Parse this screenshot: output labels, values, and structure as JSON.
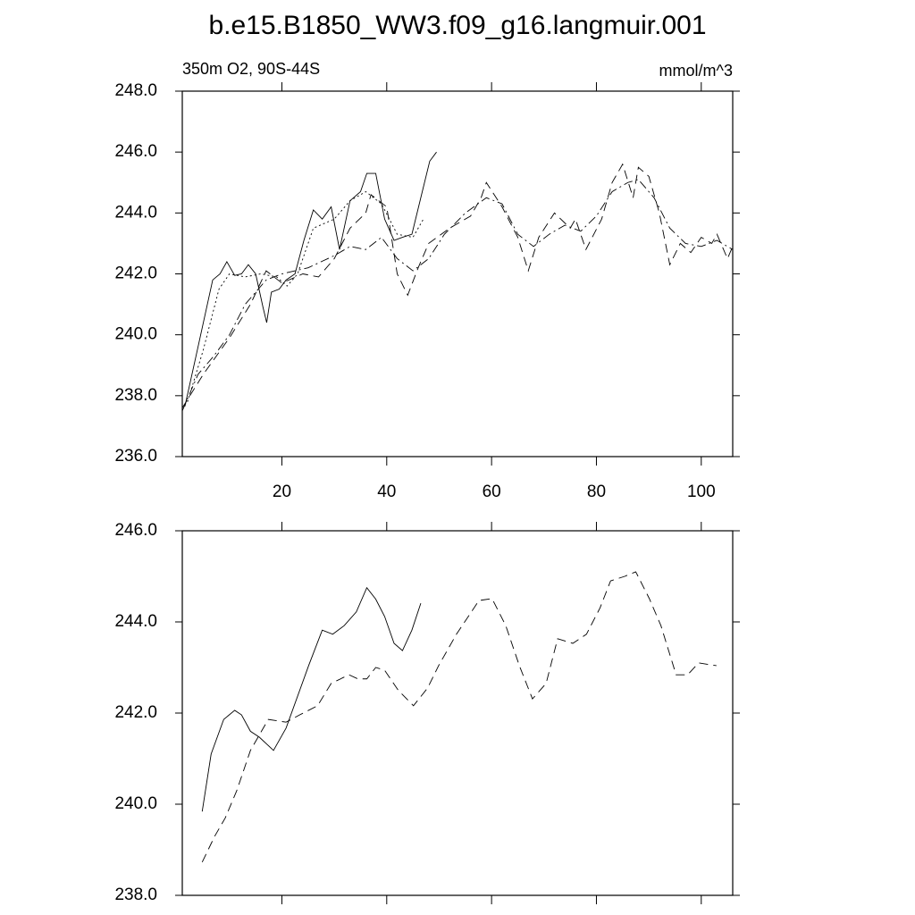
{
  "chart_data": [
    {
      "type": "line",
      "title": "b.e15.B1850_WW3.f09_g16.langmuir.001",
      "subtitle_left": "350m O2, 90S-44S",
      "subtitle_right": "mmol/m^3",
      "xlim": [
        1,
        106
      ],
      "ylim": [
        236,
        248
      ],
      "xticks": [
        20,
        40,
        60,
        80,
        100
      ],
      "yticks": [
        {
          "value": 236,
          "label": "236.0"
        },
        {
          "value": 238,
          "label": "238.0"
        },
        {
          "value": 240,
          "label": "240.0"
        },
        {
          "value": 242,
          "label": "242.0"
        },
        {
          "value": 244,
          "label": "244.0"
        },
        {
          "value": 246,
          "label": "246.0"
        },
        {
          "value": 248,
          "label": "248.0"
        }
      ],
      "xticklabels": true,
      "series": [
        {
          "color": "#000000",
          "style": "solid",
          "x": [
            1.5,
            4,
            6.8,
            8.2,
            9.5,
            11,
            12.3,
            13.6,
            15,
            16.4,
            17.1,
            18,
            19.5,
            20.8,
            22.5,
            24.2,
            26,
            27.7,
            29.4,
            31,
            33,
            35,
            36.2,
            37.9,
            39.6,
            41.4,
            43,
            44.8,
            46.5,
            48.2,
            49.5
          ],
          "values": [
            237.65,
            239.6,
            241.8,
            242.0,
            242.4,
            241.95,
            242.0,
            242.3,
            242.0,
            240.9,
            240.4,
            241.4,
            241.5,
            241.8,
            242.0,
            243.1,
            244.1,
            243.8,
            244.2,
            242.8,
            244.4,
            244.7,
            245.3,
            245.3,
            243.8,
            243.1,
            243.2,
            243.3,
            244.5,
            245.7,
            246.0
          ]
        },
        {
          "color": "#000000",
          "style": "dotted",
          "x": [
            2,
            5,
            8,
            10,
            13,
            16,
            19,
            21,
            23,
            26,
            30,
            33,
            36,
            39,
            42,
            45,
            47
          ],
          "values": [
            237.8,
            239.5,
            241.5,
            242.0,
            241.9,
            242.0,
            241.9,
            241.6,
            242.0,
            243.5,
            243.8,
            244.4,
            244.7,
            244.3,
            243.3,
            243.2,
            243.8
          ]
        },
        {
          "color": "#000000",
          "style": "dashed",
          "x": [
            1,
            5,
            10,
            14,
            17,
            20,
            24,
            27,
            30,
            33,
            36,
            37,
            40,
            42,
            44,
            46,
            48,
            52,
            56,
            58,
            59,
            62,
            65,
            67,
            69,
            72,
            75,
            76,
            78,
            81,
            83,
            85,
            87,
            88,
            90,
            92,
            94,
            96,
            98,
            100,
            102,
            103,
            105,
            106
          ],
          "values": [
            237.6,
            238.7,
            239.9,
            241.0,
            242.1,
            241.7,
            242.0,
            241.9,
            242.5,
            243.5,
            244.0,
            244.6,
            244.2,
            242.0,
            241.3,
            242.2,
            243.0,
            243.5,
            243.9,
            244.5,
            245.0,
            244.2,
            243.2,
            242.1,
            243.2,
            244.0,
            243.5,
            243.8,
            242.8,
            243.8,
            245.0,
            245.6,
            244.5,
            245.5,
            245.2,
            244.0,
            242.3,
            243.0,
            242.7,
            243.2,
            243.0,
            243.3,
            242.5,
            242.9
          ]
        },
        {
          "color": "#000000",
          "style": "dashdot",
          "x": [
            1,
            4,
            7,
            10,
            13,
            17,
            20,
            25,
            30,
            33,
            36,
            39,
            42,
            45,
            48,
            51,
            55,
            59,
            62,
            65,
            68,
            71,
            74,
            77,
            80,
            83,
            86,
            88,
            91,
            94,
            97,
            100,
            103,
            106
          ],
          "values": [
            237.5,
            238.7,
            239.3,
            240.0,
            241.0,
            241.8,
            242.0,
            242.2,
            242.6,
            242.9,
            242.8,
            243.2,
            242.5,
            242.1,
            242.5,
            243.3,
            244.0,
            244.5,
            244.3,
            243.3,
            242.9,
            243.3,
            243.6,
            243.4,
            243.9,
            244.7,
            245.0,
            245.1,
            244.5,
            243.5,
            243.0,
            242.9,
            243.1,
            242.8
          ]
        }
      ]
    },
    {
      "type": "line",
      "xlim": [
        1,
        106
      ],
      "ylim": [
        238,
        246
      ],
      "xticks": [
        20,
        40,
        60,
        80,
        100
      ],
      "yticks": [
        {
          "value": 238,
          "label": "238.0"
        },
        {
          "value": 240,
          "label": "240.0"
        },
        {
          "value": 242,
          "label": "242.0"
        },
        {
          "value": 244,
          "label": "244.0"
        },
        {
          "value": 246,
          "label": "246.0"
        }
      ],
      "xticklabels": false,
      "series": [
        {
          "color": "#000000",
          "style": "solid",
          "x": [
            4.8,
            6.5,
            8.9,
            11,
            12.3,
            14,
            15.7,
            18.4,
            20.8,
            25.1,
            27.7,
            29.7,
            31.9,
            34.2,
            36.2,
            37.9,
            39.6,
            41.4,
            43,
            44.8,
            46.5
          ],
          "values": [
            239.84,
            241.1,
            241.86,
            242.06,
            241.96,
            241.6,
            241.47,
            241.18,
            241.67,
            243.04,
            243.82,
            243.73,
            243.92,
            244.22,
            244.75,
            244.5,
            244.12,
            243.53,
            243.37,
            243.82,
            244.41
          ]
        },
        {
          "color": "#000000",
          "style": "dashed",
          "x": [
            4.8,
            7.2,
            9.2,
            11.4,
            14,
            17.4,
            20.8,
            23.4,
            26.8,
            29.4,
            32.8,
            34.5,
            36.2,
            37.9,
            39.6,
            42.2,
            45.1,
            47.8,
            49.9,
            53.3,
            57.6,
            60.1,
            62.7,
            65.3,
            67.8,
            70.4,
            72.6,
            75.5,
            78.1,
            80.7,
            82.7,
            85.4,
            87.5,
            90.1,
            92.3,
            95.2,
            97.4,
            99.5,
            102.9
          ],
          "values": [
            238.73,
            239.3,
            239.7,
            240.3,
            241.18,
            241.86,
            241.8,
            241.96,
            242.16,
            242.65,
            242.84,
            242.75,
            242.75,
            243.0,
            242.94,
            242.5,
            242.16,
            242.55,
            243.04,
            243.73,
            244.47,
            244.51,
            243.92,
            243.04,
            242.31,
            242.65,
            243.63,
            243.53,
            243.73,
            244.31,
            244.9,
            245.0,
            245.1,
            244.51,
            243.92,
            242.84,
            242.84,
            243.1,
            243.04
          ]
        }
      ]
    }
  ]
}
